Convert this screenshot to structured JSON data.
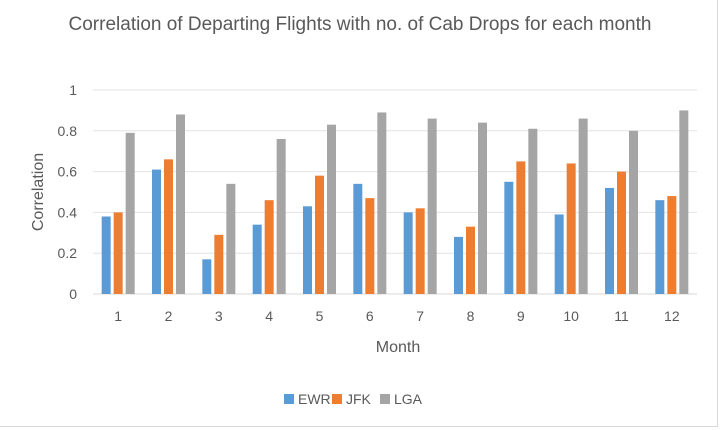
{
  "chart_data": {
    "type": "bar",
    "title": "Correlation of Departing Flights with no. of Cab Drops for each month",
    "xlabel": "Month",
    "ylabel": "Correlation",
    "ylim": [
      0,
      1
    ],
    "yticks": [
      "0",
      "0.2",
      "0.4",
      "0.6",
      "0.8",
      "1"
    ],
    "categories": [
      "1",
      "2",
      "3",
      "4",
      "5",
      "6",
      "7",
      "8",
      "9",
      "10",
      "11",
      "12"
    ],
    "grid": true,
    "legend_position": "bottom",
    "series": [
      {
        "name": "EWR",
        "color": "#5b9bd5",
        "values": [
          0.38,
          0.61,
          0.17,
          0.34,
          0.43,
          0.54,
          0.4,
          0.28,
          0.55,
          0.39,
          0.52,
          0.46
        ]
      },
      {
        "name": "JFK",
        "color": "#ed7d31",
        "values": [
          0.4,
          0.66,
          0.29,
          0.46,
          0.58,
          0.47,
          0.42,
          0.33,
          0.65,
          0.64,
          0.6,
          0.48
        ]
      },
      {
        "name": "LGA",
        "color": "#a5a5a5",
        "values": [
          0.79,
          0.88,
          0.54,
          0.76,
          0.83,
          0.89,
          0.86,
          0.84,
          0.81,
          0.86,
          0.8,
          0.9
        ]
      }
    ]
  }
}
